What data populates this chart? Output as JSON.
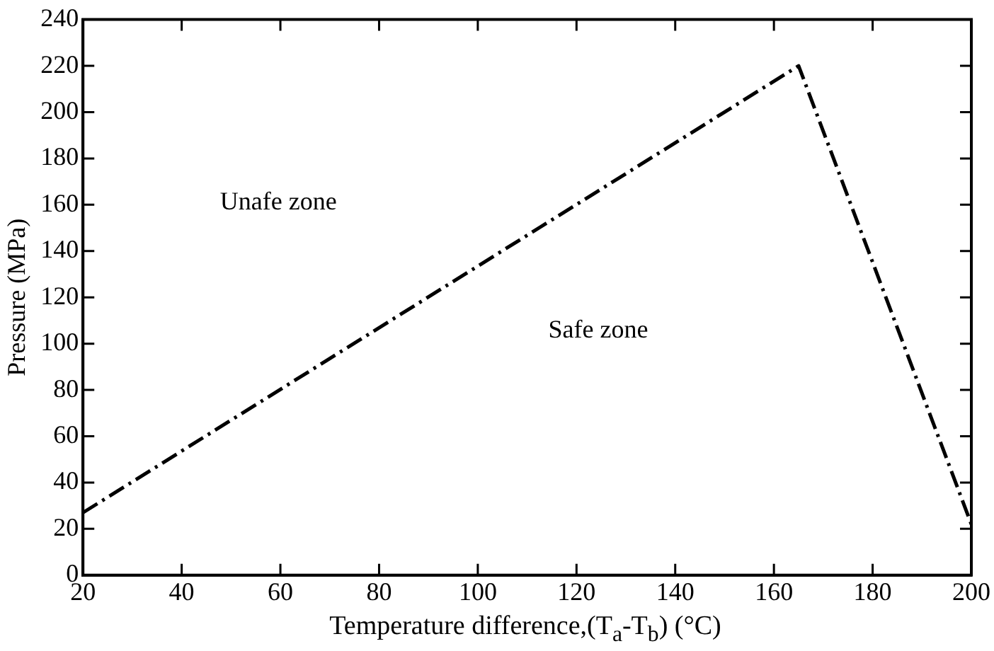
{
  "chart_data": {
    "type": "line",
    "xlabel": "Temperature difference,(T$_{a}$-T$_{b}$) (°C)",
    "ylabel": "Pressure (MPa)",
    "x": [
      20,
      165,
      200
    ],
    "series": [
      {
        "color": "#000000",
        "values": [
          27,
          220,
          22
        ]
      }
    ],
    "xlim": [
      20,
      200
    ],
    "xticks": [
      20,
      40,
      60,
      80,
      100,
      120,
      140,
      160,
      180,
      200
    ],
    "ylim": [
      0,
      240
    ],
    "yticks": [
      0,
      20,
      40,
      60,
      80,
      100,
      120,
      140,
      160,
      180,
      200,
      220,
      240
    ],
    "line_style": "dashed",
    "grid": false,
    "legend": false,
    "annotations": [
      "Unafe zone",
      "Safe zone"
    ]
  }
}
